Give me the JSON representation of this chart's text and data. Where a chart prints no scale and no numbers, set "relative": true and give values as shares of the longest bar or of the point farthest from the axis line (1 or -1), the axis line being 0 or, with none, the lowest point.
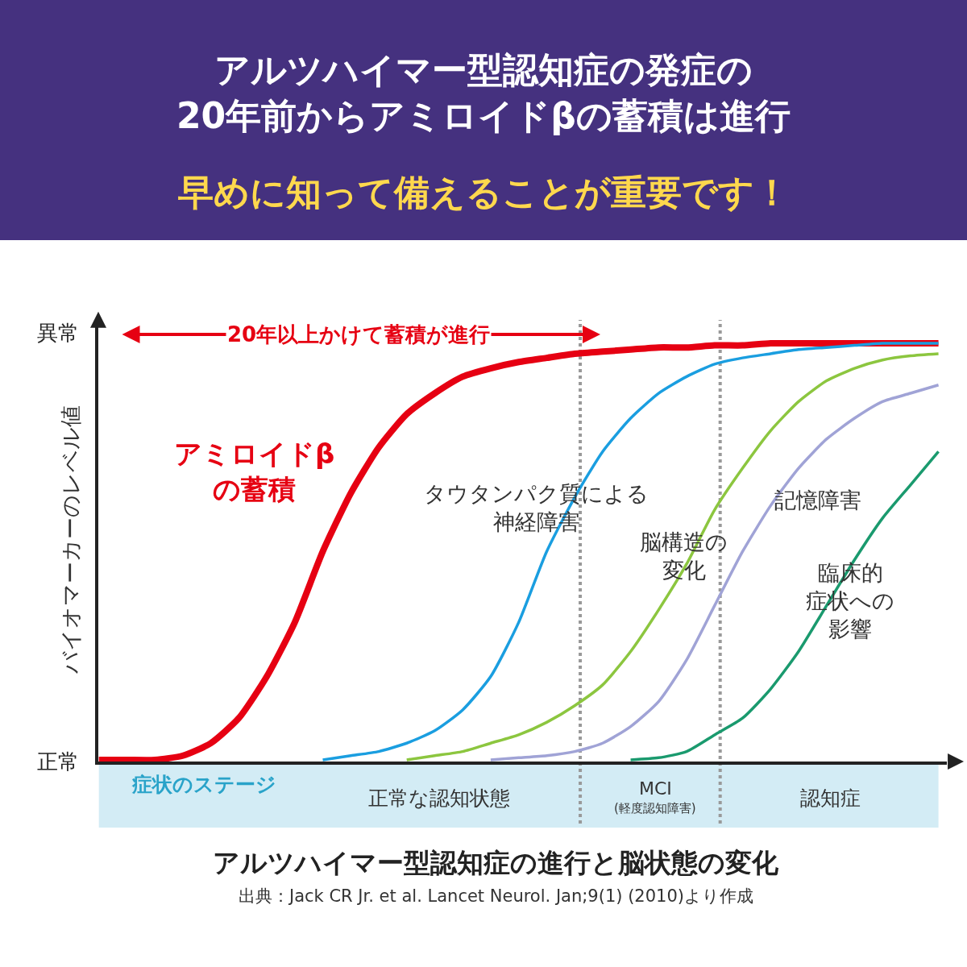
{
  "chart_data": {
    "type": "line",
    "title": "アルツハイマー型認知症の発症の\n20年前からアミロイドβの蓄積は進行",
    "subtitle": "早めに知って備えることが重要です！",
    "ylabel": "バイオマーカーのレベル値",
    "xlabel": "症状のステージ",
    "relative": true,
    "legend": false,
    "marker": "none",
    "line_style": "solid",
    "categories": [
      null,
      null,
      null,
      null,
      null,
      null,
      null,
      null,
      null,
      null,
      null,
      null,
      null,
      null,
      null,
      null,
      null,
      null,
      null,
      null,
      null,
      null,
      null,
      null,
      null,
      null,
      null,
      null,
      null,
      null,
      null
    ],
    "series": [
      {
        "name": "アミロイドβの蓄積",
        "color": "#e60012",
        "values": [
          0,
          0,
          0,
          0.01,
          0.04,
          0.1,
          0.2,
          0.33,
          0.5,
          0.64,
          0.75,
          0.83,
          0.88,
          0.92,
          0.94,
          0.955,
          0.965,
          0.975,
          0.98,
          0.985,
          0.99,
          0.99,
          0.995,
          0.995,
          1,
          1,
          1,
          1,
          1,
          1,
          1
        ]
      },
      {
        "name": "タウタンパク質による神経障害",
        "color": "#1a9ee0",
        "values": [
          null,
          null,
          null,
          null,
          null,
          null,
          null,
          null,
          0,
          0.01,
          0.02,
          0.04,
          0.07,
          0.12,
          0.2,
          0.33,
          0.5,
          0.63,
          0.74,
          0.82,
          0.88,
          0.92,
          0.95,
          0.965,
          0.975,
          0.985,
          0.99,
          0.995,
          1,
          1,
          1
        ]
      },
      {
        "name": "脳構造の変化",
        "color": "#8cc63f",
        "values": [
          null,
          null,
          null,
          null,
          null,
          null,
          null,
          null,
          null,
          null,
          null,
          0,
          0.01,
          0.02,
          0.04,
          0.06,
          0.09,
          0.13,
          0.18,
          0.26,
          0.36,
          0.47,
          0.6,
          0.7,
          0.79,
          0.86,
          0.91,
          0.94,
          0.96,
          0.97,
          0.975
        ]
      },
      {
        "name": "記憶障害",
        "color": "#a0a3d6",
        "values": [
          null,
          null,
          null,
          null,
          null,
          null,
          null,
          null,
          null,
          null,
          null,
          null,
          null,
          null,
          0,
          0.005,
          0.01,
          0.02,
          0.04,
          0.08,
          0.14,
          0.24,
          0.37,
          0.5,
          0.61,
          0.7,
          0.77,
          0.82,
          0.86,
          0.88,
          0.9
        ]
      },
      {
        "name": "臨床的症状への影響",
        "color": "#1a9a6e",
        "values": [
          null,
          null,
          null,
          null,
          null,
          null,
          null,
          null,
          null,
          null,
          null,
          null,
          null,
          null,
          null,
          null,
          null,
          null,
          null,
          0,
          0.005,
          0.02,
          0.06,
          0.1,
          0.17,
          0.26,
          0.37,
          0.48,
          0.58,
          0.66,
          0.74
        ]
      }
    ],
    "annotations": [
      "異常",
      "正常",
      "20年以上かけて蓄積が進行",
      "正常な認知状態",
      "MCI",
      "(軽度認知障害)",
      "認知症",
      "アルツハイマー型認知症の進行と脳状態の変化",
      "出典：Jack CR Jr. et al. Lancet Neurol. Jan;9(1) (2010)より作成"
    ]
  }
}
